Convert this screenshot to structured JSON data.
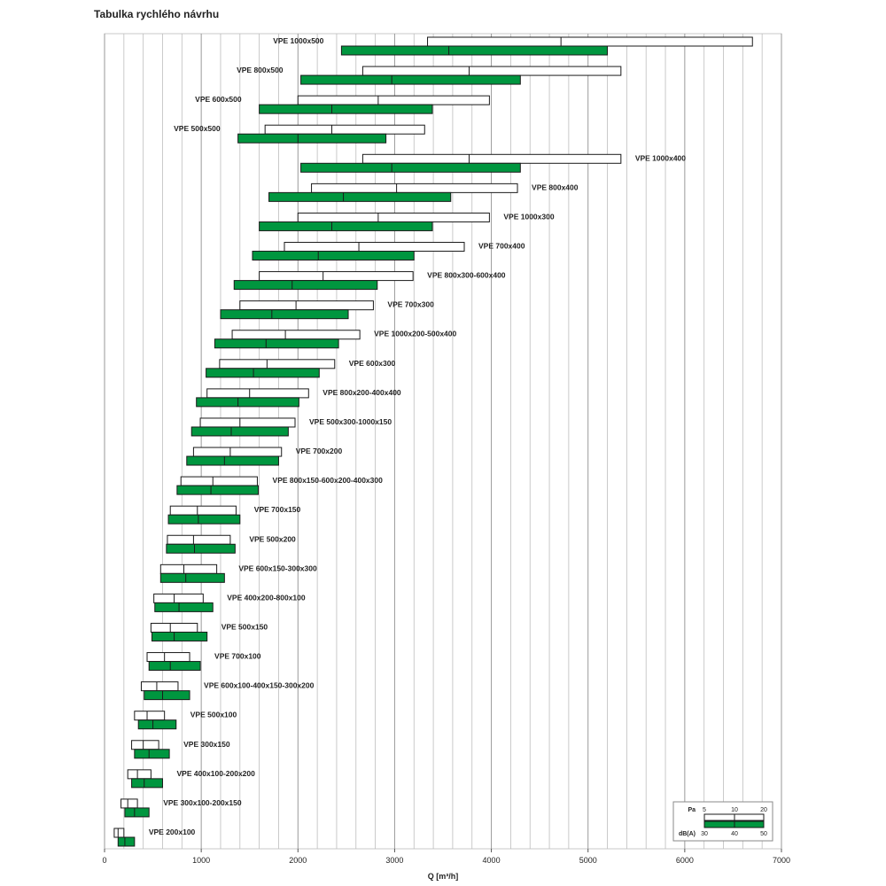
{
  "page_title": "Tabulka rychlého návrhu",
  "chart_data": {
    "type": "range-bar",
    "title": "Tabulka rychlého návrhu",
    "xlabel": "Q [m³/h]",
    "xlim": [
      0,
      7000
    ],
    "xticks": [
      0,
      1000,
      2000,
      3000,
      4000,
      5000,
      6000,
      7000
    ],
    "grid": true,
    "legend": {
      "placement": "bottom-right",
      "pa_label": "Pa",
      "pa_ticks": [
        "5",
        "10",
        "20"
      ],
      "db_label": "dB(A)",
      "db_ticks": [
        "30",
        "40",
        "50"
      ]
    },
    "colors": {
      "pressure_bar": "#ffffff",
      "noise_bar": "#00963f",
      "outline": "#1a1a1a",
      "grid": "#bdbdbd"
    },
    "rows": [
      {
        "label": "VPE 1000x500",
        "pa": [
          3340,
          4720,
          6700
        ],
        "db": [
          2450,
          3560,
          5200
        ]
      },
      {
        "label": "VPE 800x500",
        "pa": [
          2670,
          3770,
          5340
        ],
        "db": [
          2030,
          2970,
          4300
        ]
      },
      {
        "label": "VPE 600x500",
        "pa": [
          2000,
          2830,
          3980
        ],
        "db": [
          1600,
          2350,
          3390
        ]
      },
      {
        "label": "VPE 500x500",
        "pa": [
          1660,
          2350,
          3310
        ],
        "db": [
          1380,
          2000,
          2910
        ]
      },
      {
        "label": "VPE 1000x400",
        "pa": [
          2670,
          3770,
          5340
        ],
        "db": [
          2030,
          2970,
          4300
        ]
      },
      {
        "label": "VPE 800x400",
        "pa": [
          2140,
          3020,
          4270
        ],
        "db": [
          1700,
          2470,
          3580
        ]
      },
      {
        "label": "VPE 1000x300",
        "pa": [
          2000,
          2830,
          3980
        ],
        "db": [
          1600,
          2350,
          3390
        ]
      },
      {
        "label": "VPE 700x400",
        "pa": [
          1860,
          2630,
          3720
        ],
        "db": [
          1530,
          2210,
          3200
        ]
      },
      {
        "label": "VPE 800x300-600x400",
        "pa": [
          1600,
          2260,
          3190
        ],
        "db": [
          1340,
          1940,
          2820
        ]
      },
      {
        "label": "VPE 700x300",
        "pa": [
          1400,
          1980,
          2780
        ],
        "db": [
          1200,
          1730,
          2520
        ]
      },
      {
        "label": "VPE 1000x200-500x400",
        "pa": [
          1320,
          1870,
          2640
        ],
        "db": [
          1140,
          1670,
          2420
        ]
      },
      {
        "label": "VPE 600x300",
        "pa": [
          1190,
          1680,
          2380
        ],
        "db": [
          1050,
          1540,
          2220
        ]
      },
      {
        "label": "VPE 800x200-400x400",
        "pa": [
          1060,
          1500,
          2110
        ],
        "db": [
          950,
          1380,
          2010
        ]
      },
      {
        "label": "VPE 500x300-1000x150",
        "pa": [
          990,
          1400,
          1970
        ],
        "db": [
          900,
          1310,
          1900
        ]
      },
      {
        "label": "VPE 700x200",
        "pa": [
          920,
          1300,
          1830
        ],
        "db": [
          850,
          1240,
          1800
        ]
      },
      {
        "label": "VPE 800x150-600x200-400x300",
        "pa": [
          790,
          1120,
          1580
        ],
        "db": [
          750,
          1100,
          1590
        ]
      },
      {
        "label": "VPE 700x150",
        "pa": [
          680,
          960,
          1360
        ],
        "db": [
          660,
          970,
          1400
        ]
      },
      {
        "label": "VPE 500x200",
        "pa": [
          650,
          920,
          1300
        ],
        "db": [
          640,
          930,
          1350
        ]
      },
      {
        "label": "VPE 600x150-300x300",
        "pa": [
          580,
          820,
          1160
        ],
        "db": [
          580,
          840,
          1240
        ]
      },
      {
        "label": "VPE 400x200-800x100",
        "pa": [
          510,
          720,
          1020
        ],
        "db": [
          520,
          770,
          1120
        ]
      },
      {
        "label": "VPE 500x150",
        "pa": [
          480,
          680,
          960
        ],
        "db": [
          490,
          720,
          1060
        ]
      },
      {
        "label": "VPE 700x100",
        "pa": [
          440,
          620,
          880
        ],
        "db": [
          460,
          680,
          990
        ]
      },
      {
        "label": "VPE 600x100-400x150-300x200",
        "pa": [
          380,
          540,
          760
        ],
        "db": [
          410,
          600,
          880
        ]
      },
      {
        "label": "VPE 500x100",
        "pa": [
          310,
          440,
          620
        ],
        "db": [
          350,
          500,
          740
        ]
      },
      {
        "label": "VPE 300x150",
        "pa": [
          280,
          400,
          560
        ],
        "db": [
          310,
          460,
          670
        ]
      },
      {
        "label": "VPE 400x100-200x200",
        "pa": [
          240,
          340,
          480
        ],
        "db": [
          280,
          410,
          600
        ]
      },
      {
        "label": "VPE 300x100-200x150",
        "pa": [
          170,
          240,
          340
        ],
        "db": [
          210,
          310,
          460
        ]
      },
      {
        "label": "VPE 200x100",
        "pa": [
          100,
          140,
          200
        ],
        "db": [
          140,
          210,
          310
        ]
      }
    ]
  }
}
